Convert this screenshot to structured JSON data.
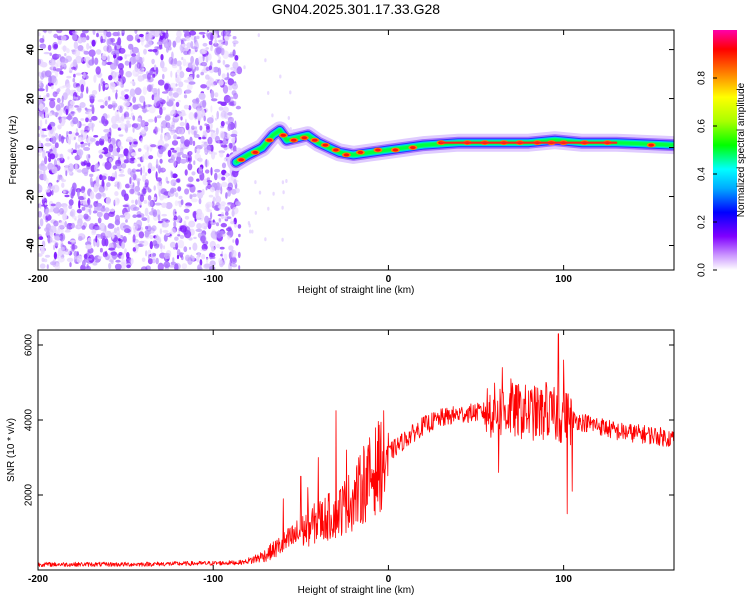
{
  "figure": {
    "title": "GN04.2025.301.17.33.G28"
  },
  "chart_data": [
    {
      "type": "heatmap",
      "panel": "spectrogram",
      "xlabel": "Height of straight line (km)",
      "ylabel": "Frequency (Hz)",
      "xlim": [
        -200,
        163
      ],
      "ylim": [
        -50,
        48
      ],
      "xticks": [
        -200,
        -100,
        0,
        100
      ],
      "yticks": [
        -40,
        -20,
        0,
        20,
        40
      ],
      "noise_region_x": [
        -200,
        -85
      ],
      "ridge": [
        {
          "x": -87,
          "y": -6
        },
        {
          "x": -80,
          "y": -3
        },
        {
          "x": -72,
          "y": 0
        },
        {
          "x": -66,
          "y": 5
        },
        {
          "x": -62,
          "y": 7
        },
        {
          "x": -58,
          "y": 3
        },
        {
          "x": -52,
          "y": 4
        },
        {
          "x": -46,
          "y": 5
        },
        {
          "x": -40,
          "y": 2
        },
        {
          "x": -34,
          "y": 0
        },
        {
          "x": -28,
          "y": -2
        },
        {
          "x": -20,
          "y": -3
        },
        {
          "x": -10,
          "y": -2
        },
        {
          "x": 0,
          "y": -1
        },
        {
          "x": 10,
          "y": 0
        },
        {
          "x": 20,
          "y": 1
        },
        {
          "x": 40,
          "y": 2
        },
        {
          "x": 60,
          "y": 2
        },
        {
          "x": 80,
          "y": 2
        },
        {
          "x": 95,
          "y": 3
        },
        {
          "x": 110,
          "y": 2
        },
        {
          "x": 130,
          "y": 2
        },
        {
          "x": 163,
          "y": 1
        }
      ],
      "colorbar": {
        "label": "Normalized spectral amplitude",
        "range": [
          0,
          1
        ],
        "ticks": [
          "0.0",
          "0.2",
          "0.4",
          "0.6",
          "0.8"
        ],
        "colors": [
          "#ffffff",
          "#cc99ff",
          "#8000ff",
          "#0000ff",
          "#00aaff",
          "#00ffff",
          "#00ff00",
          "#aaff00",
          "#ffff00",
          "#ff8000",
          "#ff0000",
          "#ff00aa"
        ]
      }
    },
    {
      "type": "line",
      "panel": "snr",
      "xlabel": "Height of straight line (km)",
      "ylabel": "SNR (10 * v/v)",
      "xlim": [
        -200,
        163
      ],
      "ylim": [
        0,
        6400
      ],
      "xticks": [
        -200,
        -100,
        0,
        100
      ],
      "yticks": [
        2000,
        4000,
        6000
      ],
      "series": [
        {
          "color": "#ff0000",
          "envelope": [
            [
              -200,
              150
            ],
            [
              -150,
              150
            ],
            [
              -100,
              180
            ],
            [
              -85,
              200
            ],
            [
              -80,
              230
            ],
            [
              -70,
              400
            ],
            [
              -60,
              700
            ],
            [
              -50,
              1000
            ],
            [
              -40,
              1300
            ],
            [
              -30,
              1500
            ],
            [
              -20,
              1900
            ],
            [
              -10,
              2500
            ],
            [
              0,
              3100
            ],
            [
              10,
              3500
            ],
            [
              20,
              3850
            ],
            [
              30,
              4050
            ],
            [
              40,
              4150
            ],
            [
              50,
              4200
            ],
            [
              60,
              4250
            ],
            [
              70,
              4250
            ],
            [
              80,
              4200
            ],
            [
              90,
              4150
            ],
            [
              100,
              4100
            ],
            [
              110,
              3950
            ],
            [
              120,
              3850
            ],
            [
              130,
              3700
            ],
            [
              140,
              3650
            ],
            [
              150,
              3600
            ],
            [
              163,
              3500
            ]
          ],
          "spikes": [
            [
              -60,
              1900
            ],
            [
              -50,
              2500
            ],
            [
              -46,
              2200
            ],
            [
              -40,
              3000
            ],
            [
              -30,
              4250
            ],
            [
              -24,
              3200
            ],
            [
              -14,
              3300
            ],
            [
              65,
              5400
            ],
            [
              70,
              5100
            ],
            [
              90,
              5000
            ],
            [
              97,
              6300
            ],
            [
              100,
              5600
            ],
            [
              102,
              1500
            ],
            [
              105,
              2100
            ],
            [
              63,
              2600
            ]
          ]
        }
      ]
    }
  ]
}
